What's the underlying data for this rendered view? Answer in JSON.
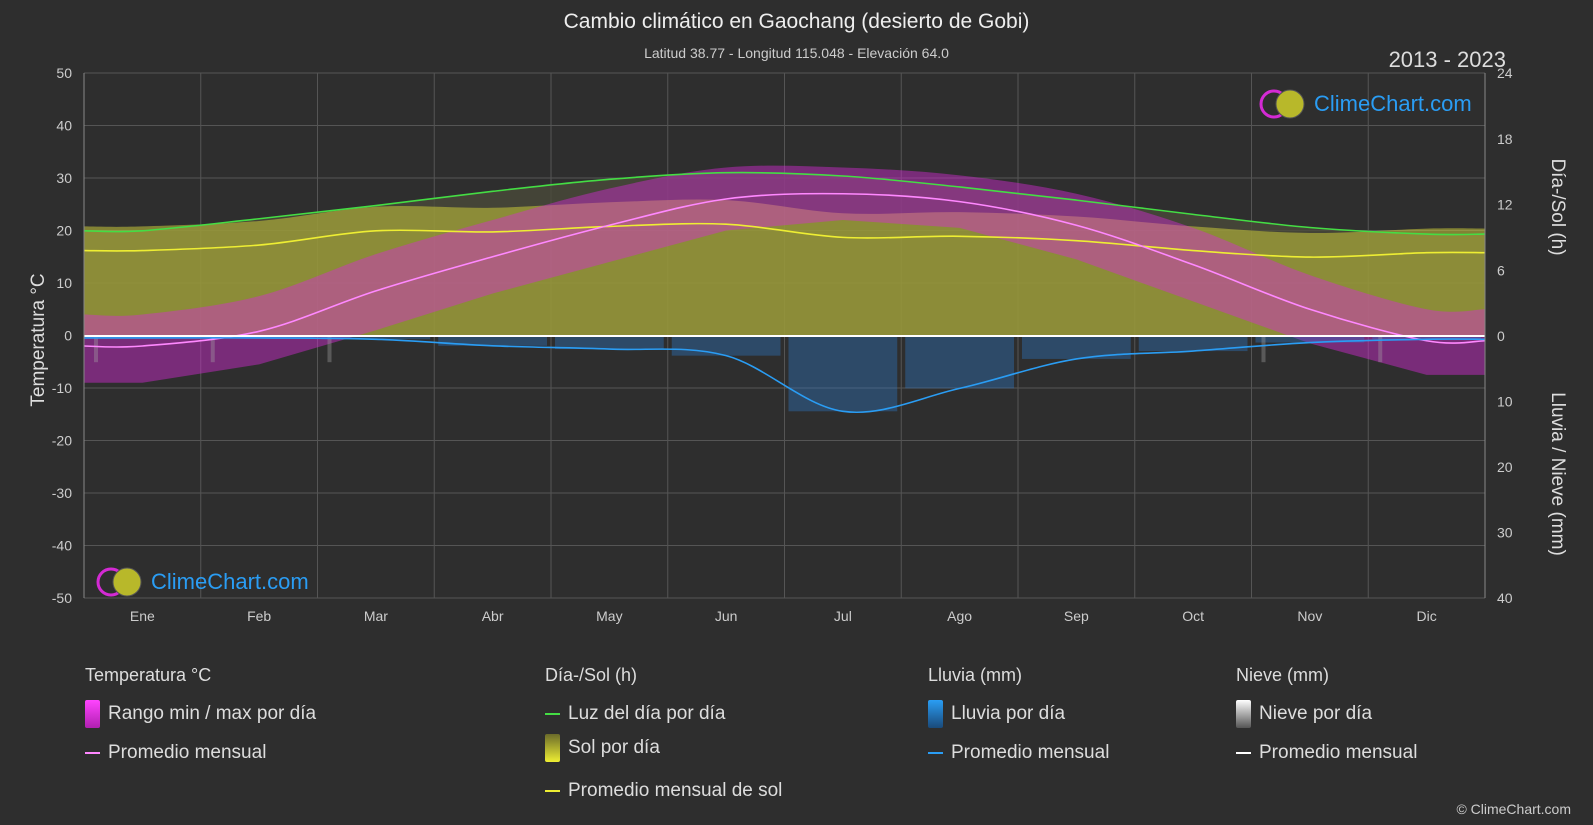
{
  "title": "Cambio climático en Gaochang (desierto de Gobi)",
  "subtitle": "Latitud 38.77 - Longitud 115.048 - Elevación 64.0",
  "years": "2013 - 2023",
  "logo_text": "ClimeChart.com",
  "copyright": "© ClimeChart.com",
  "colors": {
    "background": "#2e2e2e",
    "temp_range": "#d42ad4",
    "temp_avg": "#ff88ff",
    "daylight": "#44dd44",
    "sunshine_fill": "#c8c83a",
    "sunshine_avg": "#eeee33",
    "rain": "#2a7fd4",
    "rain_avg": "#2a9df4",
    "snow": "#aaaaaa",
    "snow_avg": "#ffffff",
    "logo": "#2a9df4"
  },
  "chart_data": {
    "type": "line",
    "categories": [
      "Ene",
      "Feb",
      "Mar",
      "Abr",
      "May",
      "Jun",
      "Jul",
      "Ago",
      "Sep",
      "Oct",
      "Nov",
      "Dic"
    ],
    "y_left": {
      "label": "Temperatura °C",
      "ylim": [
        -50,
        50
      ],
      "ticks": [
        50,
        40,
        30,
        20,
        10,
        0,
        -10,
        -20,
        -30,
        -40,
        -50
      ]
    },
    "y_right_top": {
      "label": "Día-/Sol (h)",
      "ylim": [
        0,
        24
      ],
      "ticks": [
        24,
        18,
        12,
        6,
        0
      ]
    },
    "y_right_bottom": {
      "label": "Lluvia / Nieve (mm)",
      "ylim": [
        0,
        40
      ],
      "ticks": [
        10,
        20,
        30,
        40
      ]
    },
    "grid": true,
    "series": [
      {
        "name": "Promedio mensual",
        "group": "Temperatura °C",
        "unit": "°C",
        "values": [
          -2.0,
          0.8,
          8.5,
          15.0,
          21.0,
          26.0,
          27.0,
          25.5,
          21.0,
          13.5,
          5.0,
          -1.0
        ]
      },
      {
        "name": "Rango min / max por día",
        "group": "Temperatura °C",
        "unit": "°C",
        "min": [
          -9.0,
          -5.5,
          1.0,
          8.0,
          14.0,
          20.0,
          22.0,
          20.5,
          14.5,
          6.5,
          -1.5,
          -7.5
        ],
        "max": [
          4.0,
          7.5,
          15.5,
          22.0,
          28.0,
          32.0,
          32.0,
          30.5,
          27.0,
          20.5,
          11.5,
          5.0
        ]
      },
      {
        "name": "Luz del día por día",
        "group": "Día-/Sol (h)",
        "unit": "h",
        "values": [
          9.6,
          10.7,
          11.9,
          13.2,
          14.3,
          14.9,
          14.6,
          13.6,
          12.4,
          11.1,
          9.9,
          9.3
        ]
      },
      {
        "name": "Promedio mensual de sol",
        "group": "Día-/Sol (h)",
        "unit": "h",
        "values": [
          7.8,
          8.3,
          9.6,
          9.5,
          10.0,
          10.2,
          9.0,
          9.1,
          8.7,
          7.8,
          7.2,
          7.6
        ]
      },
      {
        "name": "Promedio mensual",
        "group": "Lluvia (mm)",
        "unit": "mm",
        "values": [
          0.3,
          0.3,
          0.5,
          1.5,
          2.0,
          3.0,
          11.5,
          8.0,
          3.5,
          2.3,
          1.0,
          0.5
        ]
      },
      {
        "name": "Promedio mensual",
        "group": "Nieve (mm)",
        "unit": "mm",
        "values": [
          0.1,
          0.1,
          0.1,
          0.0,
          0.0,
          0.0,
          0.0,
          0.0,
          0.0,
          0.0,
          0.1,
          0.1
        ]
      }
    ]
  },
  "legend": {
    "temp": {
      "heading": "Temperatura °C",
      "range": "Rango min / max por día",
      "avg": "Promedio mensual"
    },
    "sun": {
      "heading": "Día-/Sol (h)",
      "daylight": "Luz del día por día",
      "sunshine": "Sol por día",
      "sun_avg": "Promedio mensual de sol"
    },
    "rain": {
      "heading": "Lluvia (mm)",
      "daily": "Lluvia por día",
      "avg": "Promedio mensual"
    },
    "snow": {
      "heading": "Nieve (mm)",
      "daily": "Nieve por día",
      "avg": "Promedio mensual"
    }
  }
}
